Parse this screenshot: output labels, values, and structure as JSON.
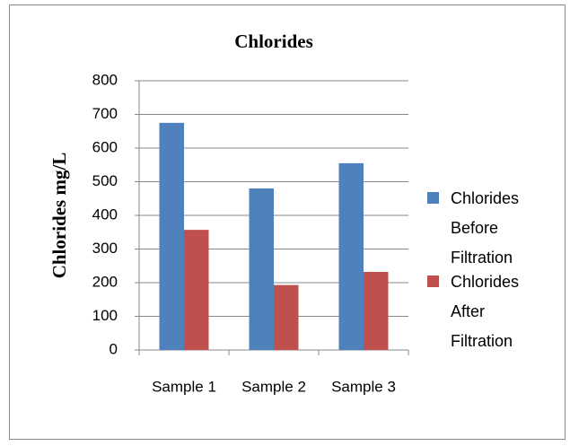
{
  "chart_data": {
    "type": "bar",
    "title": "Chlorides",
    "y_label": "Chlorides mg/L",
    "categories": [
      "Sample 1",
      "Sample 2",
      "Sample 3"
    ],
    "series": [
      {
        "name": "Chlorides Before Filtration",
        "color": "#4f81bd",
        "values": [
          675,
          480,
          555
        ]
      },
      {
        "name": "Chlorides After Filtration",
        "color": "#c0504d",
        "values": [
          357,
          193,
          232
        ]
      }
    ],
    "ylim": [
      0,
      800
    ],
    "yticks": [
      0,
      100,
      200,
      300,
      400,
      500,
      600,
      700,
      800
    ],
    "grid": true,
    "legend": "right"
  }
}
